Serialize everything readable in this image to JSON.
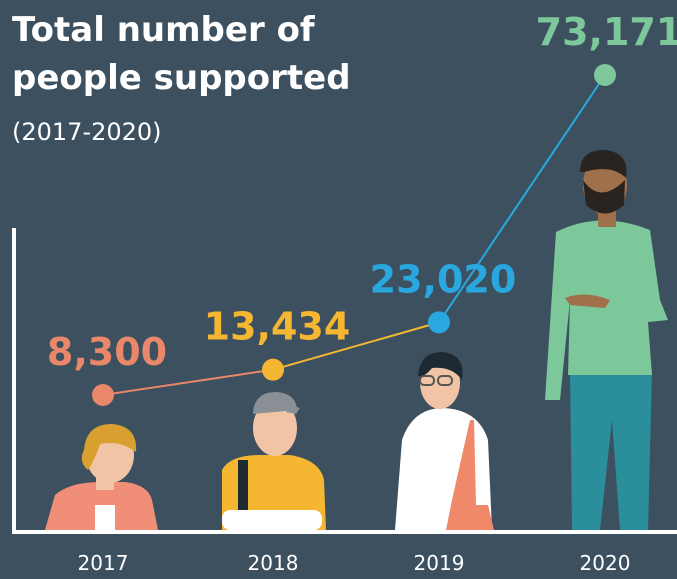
{
  "chart_data": {
    "type": "line",
    "title": "Total number of people supported",
    "subtitle": "(2017-2020)",
    "categories": [
      "2017",
      "2018",
      "2019",
      "2020"
    ],
    "values": [
      8300,
      13434,
      23020,
      73171
    ],
    "value_labels": [
      "8,300",
      "13,434",
      "23,020",
      "73,171"
    ],
    "colors": [
      "#e8876a",
      "#f5b731",
      "#29a8e0",
      "#7cc89a"
    ]
  }
}
